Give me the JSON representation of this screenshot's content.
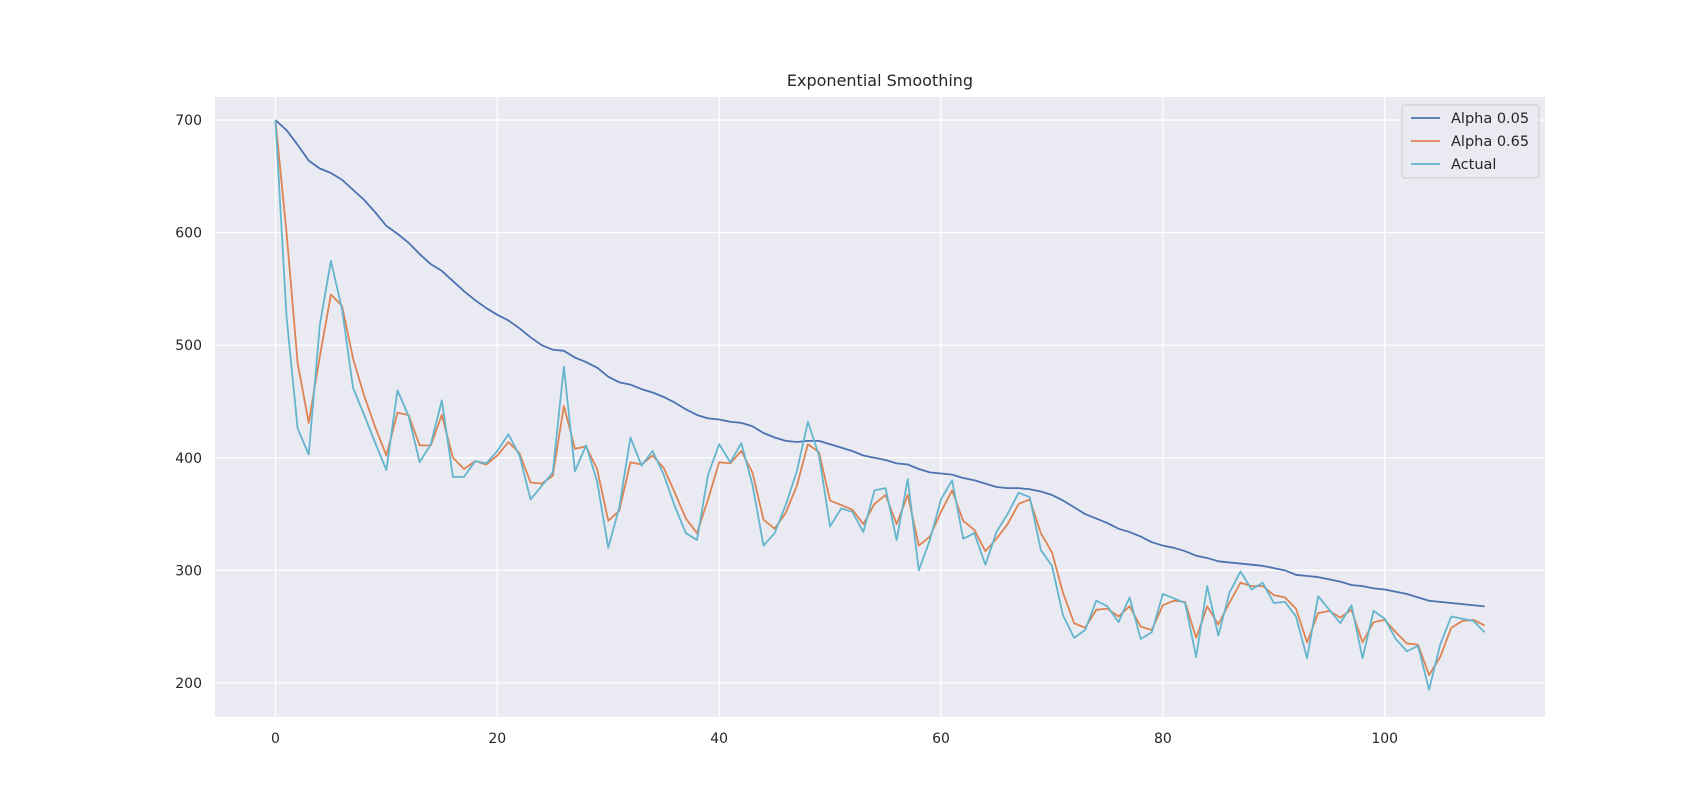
{
  "chart_data": {
    "type": "line",
    "title": "Exponential Smoothing",
    "xlabel": "",
    "ylabel": "",
    "xlim": [
      -5.45,
      114.45
    ],
    "ylim": [
      169.7,
      720.5
    ],
    "xticks": [
      0,
      20,
      40,
      60,
      80,
      100
    ],
    "yticks": [
      200,
      300,
      400,
      500,
      600,
      700
    ],
    "grid": true,
    "legend_position": "top-right",
    "colors": {
      "background": "#eaeaf2",
      "grid": "#ffffff",
      "Alpha 0.05": "#4c72b0",
      "Alpha 0.65": "#dd8452",
      "Actual": "#64b5cd"
    },
    "series": [
      {
        "name": "Alpha 0.05",
        "values": [
          700,
          691,
          678,
          664,
          657,
          653,
          647,
          638,
          629,
          618,
          606,
          599,
          591,
          581,
          572,
          566,
          557,
          548,
          540,
          533,
          527,
          522,
          515,
          507,
          500,
          496,
          495,
          489,
          485,
          480,
          472,
          467,
          465,
          461,
          458,
          454,
          449,
          443,
          438,
          435,
          434,
          432,
          431,
          428,
          422,
          418,
          415,
          414,
          415,
          415,
          412,
          409,
          406,
          402,
          400,
          398,
          395,
          394,
          390,
          387,
          386,
          385,
          382,
          380,
          377,
          374,
          373,
          373,
          372,
          370,
          367,
          362,
          356,
          350,
          346,
          342,
          337,
          334,
          330,
          325,
          322,
          320,
          317,
          313,
          311,
          308,
          307,
          306,
          305,
          304,
          302,
          300,
          296,
          295,
          294,
          292,
          290,
          287,
          286,
          284,
          283,
          281,
          279,
          276,
          273,
          272,
          271,
          270,
          269,
          268
        ],
        "x_start": 0
      },
      {
        "name": "Alpha 0.65",
        "values": [
          700,
          600,
          484,
          431,
          490,
          545,
          535,
          488,
          455,
          427,
          402,
          440,
          438,
          411,
          411,
          438,
          400,
          390,
          397,
          394,
          402,
          414,
          404,
          378,
          377,
          384,
          446,
          408,
          410,
          390,
          344,
          353,
          396,
          394,
          402,
          391,
          369,
          346,
          333,
          363,
          396,
          395,
          406,
          387,
          345,
          337,
          351,
          375,
          412,
          405,
          362,
          358,
          354,
          341,
          359,
          367,
          341,
          367,
          322,
          330,
          352,
          371,
          344,
          336,
          317,
          328,
          341,
          359,
          363,
          333,
          316,
          280,
          253,
          249,
          265,
          266,
          259,
          268,
          250,
          247,
          269,
          273,
          272,
          240,
          268,
          252,
          271,
          289,
          286,
          286,
          278,
          276,
          266,
          236,
          262,
          264,
          258,
          265,
          236,
          254,
          256,
          245,
          235,
          234,
          207,
          223,
          249,
          255,
          256,
          251
        ],
        "x_start": 0
      },
      {
        "name": "Actual",
        "values": [
          700,
          525,
          426,
          403,
          518,
          575,
          532,
          462,
          438,
          413,
          389,
          460,
          437,
          396,
          412,
          451,
          383,
          383,
          397,
          395,
          406,
          421,
          402,
          363,
          375,
          387,
          481,
          388,
          411,
          379,
          320,
          356,
          418,
          393,
          406,
          385,
          357,
          333,
          327,
          385,
          412,
          396,
          413,
          376,
          322,
          333,
          358,
          388,
          432,
          402,
          339,
          355,
          352,
          334,
          371,
          373,
          327,
          381,
          300,
          327,
          363,
          380,
          328,
          333,
          305,
          334,
          350,
          369,
          365,
          318,
          304,
          260,
          240,
          247,
          273,
          268,
          254,
          276,
          239,
          245,
          279,
          275,
          271,
          223,
          286,
          242,
          280,
          299,
          283,
          289,
          271,
          272,
          259,
          222,
          277,
          265,
          253,
          269,
          222,
          264,
          257,
          239,
          228,
          233,
          194,
          234,
          259,
          257,
          255,
          245
        ],
        "x_start": 0
      }
    ]
  }
}
